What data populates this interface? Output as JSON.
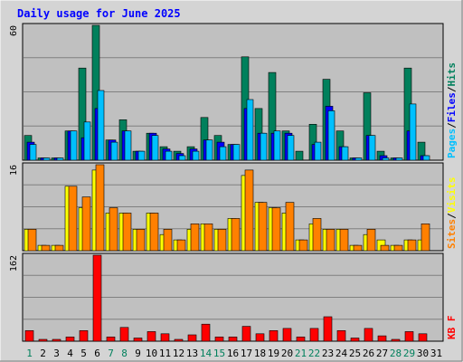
{
  "title": "Daily usage for June 2025",
  "colors": {
    "background": "#d4d4d4",
    "plot_bg": "#c0c0c0",
    "title": "#0000ff",
    "hits": "#00805c",
    "files": "#0000ff",
    "pages": "#00c0ff",
    "visits": "#ffff00",
    "sites": "#ff8000",
    "kbytes": "#ff0000",
    "weekend_label": "#00805c"
  },
  "chart_data": [
    {
      "type": "bar",
      "name": "hits-files-pages",
      "ylim": [
        0,
        60
      ],
      "max_label": "60",
      "legend": [
        "Pages",
        "Files",
        "Hits"
      ],
      "categories": [
        "1",
        "2",
        "3",
        "4",
        "5",
        "6",
        "7",
        "8",
        "9",
        "10",
        "11",
        "12",
        "13",
        "14",
        "15",
        "16",
        "17",
        "18",
        "19",
        "20",
        "21",
        "22",
        "23",
        "24",
        "25",
        "26",
        "27",
        "28",
        "29",
        "30",
        "31"
      ],
      "series": [
        {
          "name": "Hits",
          "values": [
            11,
            1,
            1,
            13,
            41,
            60,
            9,
            18,
            4,
            12,
            6,
            4,
            6,
            19,
            11,
            7,
            46,
            23,
            39,
            13,
            4,
            16,
            36,
            13,
            1,
            30,
            4,
            1,
            41,
            8,
            0
          ]
        },
        {
          "name": "Files",
          "values": [
            8,
            1,
            1,
            13,
            10,
            23,
            9,
            13,
            4,
            12,
            5,
            3,
            5,
            9,
            8,
            7,
            23,
            12,
            12,
            12,
            0,
            7,
            24,
            6,
            1,
            11,
            2,
            1,
            13,
            2,
            0
          ]
        },
        {
          "name": "Pages",
          "values": [
            7,
            1,
            1,
            13,
            17,
            31,
            8,
            13,
            4,
            11,
            4,
            2,
            4,
            9,
            6,
            7,
            27,
            12,
            13,
            11,
            0,
            8,
            22,
            6,
            1,
            11,
            1,
            1,
            25,
            2,
            0
          ]
        }
      ]
    },
    {
      "type": "bar",
      "name": "visits-sites",
      "ylim": [
        0,
        16
      ],
      "max_label": "16",
      "legend": [
        "Sites",
        "Visits"
      ],
      "categories": [
        "1",
        "2",
        "3",
        "4",
        "5",
        "6",
        "7",
        "8",
        "9",
        "10",
        "11",
        "12",
        "13",
        "14",
        "15",
        "16",
        "17",
        "18",
        "19",
        "20",
        "21",
        "22",
        "23",
        "24",
        "25",
        "26",
        "27",
        "28",
        "29",
        "30",
        "31"
      ],
      "series": [
        {
          "name": "Visits",
          "values": [
            4,
            1,
            1,
            12,
            8,
            15,
            7,
            7,
            4,
            7,
            3,
            2,
            4,
            5,
            4,
            6,
            14,
            9,
            8,
            7,
            2,
            5,
            4,
            4,
            1,
            3,
            2,
            1,
            2,
            2,
            0
          ]
        },
        {
          "name": "Sites",
          "values": [
            4,
            1,
            1,
            12,
            10,
            16,
            8,
            7,
            4,
            7,
            4,
            2,
            5,
            5,
            4,
            6,
            15,
            9,
            8,
            9,
            2,
            6,
            4,
            4,
            1,
            4,
            1,
            1,
            2,
            5,
            0
          ]
        }
      ]
    },
    {
      "type": "bar",
      "name": "kbytes",
      "ylim": [
        0,
        162
      ],
      "max_label": "162",
      "legend": [
        "KB F"
      ],
      "categories": [
        "1",
        "2",
        "3",
        "4",
        "5",
        "6",
        "7",
        "8",
        "9",
        "10",
        "11",
        "12",
        "13",
        "14",
        "15",
        "16",
        "17",
        "18",
        "19",
        "20",
        "21",
        "22",
        "23",
        "24",
        "25",
        "26",
        "27",
        "28",
        "29",
        "30",
        "31"
      ],
      "series": [
        {
          "name": "KB F",
          "values": [
            20,
            2,
            2,
            8,
            20,
            162,
            8,
            26,
            6,
            18,
            14,
            2,
            12,
            32,
            8,
            8,
            28,
            14,
            20,
            24,
            8,
            24,
            46,
            20,
            6,
            24,
            10,
            2,
            18,
            14,
            0
          ]
        }
      ]
    }
  ],
  "weekend_days": [
    1,
    7,
    8,
    14,
    15,
    21,
    22,
    28,
    29
  ]
}
